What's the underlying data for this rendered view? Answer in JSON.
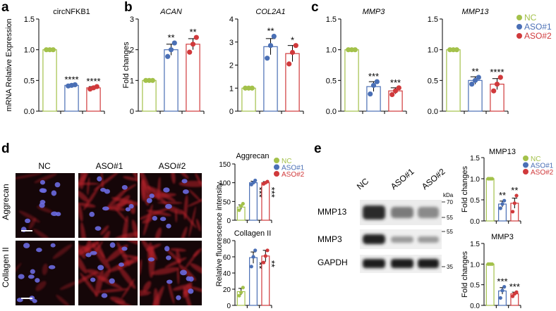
{
  "colors": {
    "NC": "#a3c14a",
    "ASO1": "#4a6fb5",
    "ASO2": "#d0393b",
    "cells_bg": "#150608"
  },
  "panels": [
    {
      "id": "a",
      "label": "a"
    },
    {
      "id": "b",
      "label": "b"
    },
    {
      "id": "c",
      "label": "c"
    },
    {
      "id": "d",
      "label": "d"
    },
    {
      "id": "e",
      "label": "e"
    }
  ],
  "legend": {
    "items": [
      "NC",
      "ASO#1",
      "ASO#2"
    ]
  },
  "chart_data": [
    {
      "id": "circ",
      "type": "bar",
      "title": "circNFKB1",
      "title_italic": false,
      "ylabel": "mRNA Relative Expression",
      "ylim": [
        0,
        1.5
      ],
      "yticks": [
        "0.0",
        "0.5",
        "1.0",
        "1.5"
      ],
      "categories": [
        "NC",
        "ASO#1",
        "ASO#2"
      ],
      "values": [
        1.0,
        0.42,
        0.38
      ],
      "err": [
        0,
        0.01,
        0.02
      ],
      "points": [
        [
          1.0,
          1.0,
          1.0
        ],
        [
          0.41,
          0.42,
          0.43
        ],
        [
          0.36,
          0.38,
          0.4
        ]
      ],
      "sig": [
        "",
        "****",
        "****"
      ]
    },
    {
      "id": "acan",
      "type": "bar",
      "title": "ACAN",
      "title_italic": true,
      "ylabel": "Fold changes",
      "ylim": [
        0,
        3
      ],
      "yticks": [
        "0",
        "1",
        "2",
        "3"
      ],
      "categories": [
        "NC",
        "ASO#1",
        "ASO#2"
      ],
      "values": [
        1.0,
        2.0,
        2.18
      ],
      "err": [
        0,
        0.18,
        0.18
      ],
      "points": [
        [
          1.0,
          1.0,
          1.0
        ],
        [
          1.78,
          2.0,
          2.22
        ],
        [
          1.92,
          2.18,
          2.4
        ]
      ],
      "sig": [
        "",
        "**",
        "**"
      ]
    },
    {
      "id": "col2a1",
      "type": "bar",
      "title": "COL2A1",
      "title_italic": true,
      "ylabel": "",
      "ylim": [
        0,
        4
      ],
      "yticks": [
        "0",
        "1",
        "2",
        "3",
        "4"
      ],
      "categories": [
        "NC",
        "ASO#1",
        "ASO#2"
      ],
      "values": [
        1.0,
        2.8,
        2.5
      ],
      "err": [
        0,
        0.35,
        0.35
      ],
      "points": [
        [
          1.0,
          1.0,
          1.0
        ],
        [
          2.3,
          2.85,
          3.25
        ],
        [
          2.05,
          2.55,
          2.85
        ]
      ],
      "sig": [
        "",
        "**",
        "*"
      ]
    },
    {
      "id": "mmp3",
      "type": "bar",
      "title": "MMP3",
      "title_italic": true,
      "ylabel": "",
      "ylim": [
        0,
        1.5
      ],
      "yticks": [
        "0.0",
        "0.5",
        "1.0",
        "1.5"
      ],
      "categories": [
        "NC",
        "ASO#1",
        "ASO#2"
      ],
      "values": [
        1.0,
        0.4,
        0.33
      ],
      "err": [
        0,
        0.08,
        0.05
      ],
      "points": [
        [
          1.0,
          1.0,
          1.0
        ],
        [
          0.28,
          0.42,
          0.48
        ],
        [
          0.27,
          0.33,
          0.38
        ]
      ],
      "sig": [
        "",
        "***",
        "***"
      ]
    },
    {
      "id": "mmp13",
      "type": "bar",
      "title": "MMP13",
      "title_italic": true,
      "ylabel": "",
      "ylim": [
        0,
        1.5
      ],
      "yticks": [
        "0.0",
        "0.5",
        "1.0",
        "1.5"
      ],
      "categories": [
        "NC",
        "ASO#1",
        "ASO#2"
      ],
      "values": [
        1.0,
        0.5,
        0.44
      ],
      "err": [
        0,
        0.06,
        0.09
      ],
      "points": [
        [
          1.0,
          1.0,
          1.0
        ],
        [
          0.44,
          0.5,
          0.55
        ],
        [
          0.33,
          0.44,
          0.55
        ]
      ],
      "sig": [
        "",
        "**",
        "****"
      ]
    },
    {
      "id": "aggrecan",
      "type": "bar",
      "title": "Aggrecan",
      "title_italic": false,
      "ylabel": "",
      "ylim": [
        0,
        150
      ],
      "yticks": [
        "0",
        "50",
        "100",
        "150"
      ],
      "categories": [
        "NC",
        "ASO#1",
        "ASO#2"
      ],
      "values": [
        35,
        100,
        100
      ],
      "err": [
        6,
        4,
        3
      ],
      "points": [
        [
          27,
          38,
          44
        ],
        [
          95,
          100,
          106
        ],
        [
          97,
          100,
          103
        ]
      ],
      "sig": [
        "",
        "***",
        "***"
      ],
      "sig_rotated": true
    },
    {
      "id": "collagen2",
      "type": "bar",
      "title": "Collagen II",
      "title_italic": false,
      "ylabel": "",
      "ylim": [
        0,
        80
      ],
      "yticks": [
        "0",
        "20",
        "40",
        "60",
        "80"
      ],
      "categories": [
        "NC",
        "ASO#1",
        "ASO#2"
      ],
      "values": [
        17,
        59,
        61
      ],
      "err": [
        4,
        7,
        7
      ],
      "points": [
        [
          12,
          16,
          22
        ],
        [
          48,
          60,
          68
        ],
        [
          53,
          61,
          68
        ]
      ],
      "sig": [
        "",
        "**",
        "**"
      ],
      "sig_rotated": true
    },
    {
      "id": "wb_mmp13",
      "type": "bar",
      "title": "MMP13",
      "title_italic": false,
      "ylabel": "Fold changes",
      "ylim": [
        0,
        1.5
      ],
      "yticks": [
        "0.0",
        "0.5",
        "1.0",
        "1.5"
      ],
      "categories": [
        "NC",
        "ASO#1",
        "ASO#2"
      ],
      "values": [
        1.0,
        0.4,
        0.42
      ],
      "err": [
        0,
        0.07,
        0.12
      ],
      "points": [
        [
          1.0,
          1.0,
          1.0
        ],
        [
          0.3,
          0.4,
          0.48
        ],
        [
          0.22,
          0.42,
          0.6
        ]
      ],
      "sig": [
        "",
        "**",
        "**"
      ]
    },
    {
      "id": "wb_mmp3",
      "type": "bar",
      "title": "MMP3",
      "title_italic": false,
      "ylabel": "Fold changes",
      "ylim": [
        0,
        1.5
      ],
      "yticks": [
        "0.0",
        "0.5",
        "1.0",
        "1.5"
      ],
      "categories": [
        "NC",
        "ASO#1",
        "ASO#2"
      ],
      "values": [
        1.0,
        0.35,
        0.28
      ],
      "err": [
        0,
        0.08,
        0.04
      ],
      "points": [
        [
          1.0,
          1.0,
          1.0
        ],
        [
          0.18,
          0.36,
          0.45
        ],
        [
          0.22,
          0.28,
          0.32
        ]
      ],
      "sig": [
        "",
        "***",
        "***"
      ]
    }
  ],
  "micrographs": {
    "columns": [
      "NC",
      "ASO#1",
      "ASO#2"
    ],
    "rows": [
      "Aggrecan",
      "Collagen II"
    ],
    "ylabel": "Relative fluorescence intensity"
  },
  "western_blot": {
    "lanes": [
      "NC",
      "ASO#1",
      "ASO#2"
    ],
    "kda_label": "kDa",
    "bands": [
      {
        "name": "MMP13",
        "markers": [
          "70",
          "55"
        ]
      },
      {
        "name": "MMP3",
        "markers": [
          "55"
        ]
      },
      {
        "name": "GAPDH",
        "markers": [
          "35"
        ]
      }
    ]
  }
}
